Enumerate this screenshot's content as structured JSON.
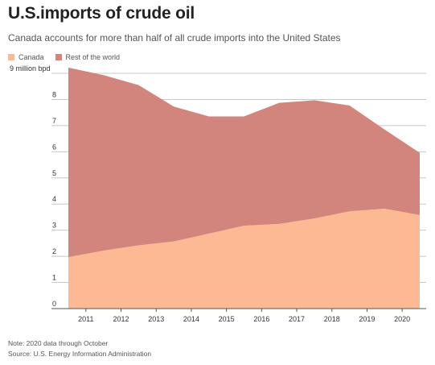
{
  "header": {
    "title": "U.S.imports of crude oil",
    "subtitle": "Canada accounts for more than half of all crude imports into the United States"
  },
  "legend": [
    {
      "label": "Canada",
      "color": "#fdb994"
    },
    {
      "label": "Rest of the world",
      "color": "#d1857c"
    }
  ],
  "footer": {
    "note": "Note: 2020 data through October",
    "source": "Source: U.S. Energy Information Administration"
  },
  "chart_data": {
    "type": "area",
    "stacked": true,
    "ylabel": "",
    "yunit_label": "9 million bpd",
    "ylim": [
      0,
      9
    ],
    "yticks": [
      0,
      1,
      2,
      3,
      4,
      5,
      6,
      7,
      8,
      9
    ],
    "xlim": [
      2010.5,
      2020.5
    ],
    "xticks": [
      2011,
      2012,
      2013,
      2014,
      2015,
      2016,
      2017,
      2018,
      2019,
      2020
    ],
    "grid": true,
    "legend_position": "top-left",
    "x": [
      2010.5,
      2011.5,
      2012.5,
      2013.5,
      2014.5,
      2015.5,
      2016.5,
      2017.5,
      2018.5,
      2019.5,
      2020.5
    ],
    "series": [
      {
        "name": "Canada",
        "color": "#fdb994",
        "values": [
          1.97,
          2.22,
          2.42,
          2.57,
          2.87,
          3.17,
          3.24,
          3.45,
          3.72,
          3.82,
          3.58
        ]
      },
      {
        "name": "Rest of the world",
        "color": "#d1857c",
        "values": [
          7.25,
          6.71,
          6.13,
          5.16,
          4.48,
          4.18,
          4.63,
          4.52,
          4.05,
          3.03,
          2.38
        ]
      }
    ]
  }
}
